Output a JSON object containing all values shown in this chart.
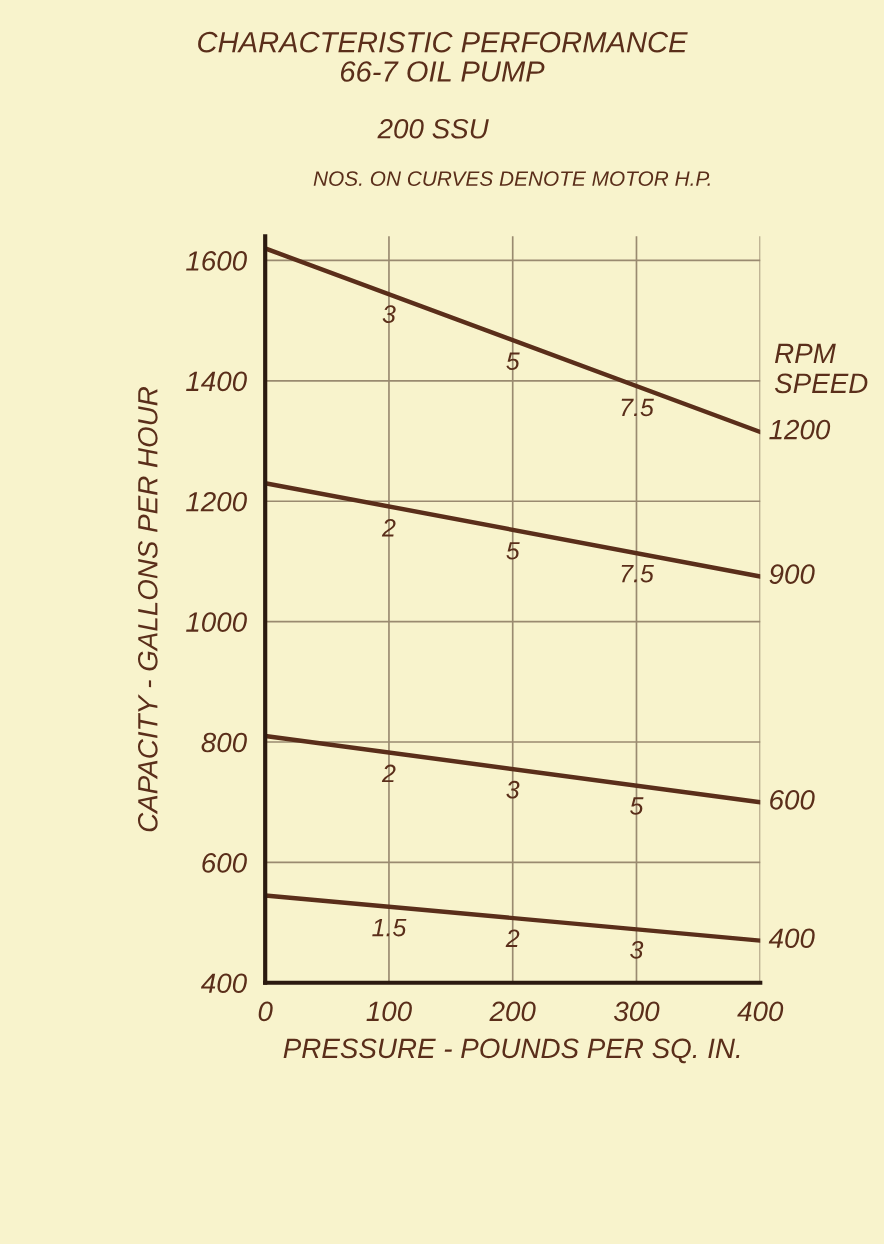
{
  "chart_data": {
    "type": "line",
    "title": "CHARACTERISTIC PERFORMANCE\n66-7 OIL PUMP",
    "subtitle": "200 SSU",
    "xlabel": "PRESSURE - POUNDS PER SQ. IN.",
    "ylabel": "CAPACITY - GALLONS PER HOUR",
    "legend_title": "RPM\nSPEED",
    "x": [
      0,
      400
    ],
    "series": [
      {
        "name": "1200",
        "color": "#5a2e1a",
        "values": [
          1620,
          1315
        ]
      },
      {
        "name": "900",
        "color": "#5a2e1a",
        "values": [
          1230,
          1075
        ]
      },
      {
        "name": "600",
        "color": "#5a2e1a",
        "values": [
          810,
          700
        ]
      },
      {
        "name": "400",
        "color": "#5a2e1a",
        "values": [
          545,
          470
        ]
      }
    ],
    "annotations": [
      "NOS. ON CURVES DENOTE MOTOR H.P.",
      {
        "text": "3",
        "x": 100,
        "y": 1545
      },
      {
        "text": "5",
        "x": 200,
        "y": 1467
      },
      {
        "text": "7.5",
        "x": 300,
        "y": 1390
      },
      {
        "text": "2",
        "x": 100,
        "y": 1190
      },
      {
        "text": "5",
        "x": 200,
        "y": 1152
      },
      {
        "text": "7.5",
        "x": 300,
        "y": 1114
      },
      {
        "text": "2",
        "x": 100,
        "y": 782
      },
      {
        "text": "3",
        "x": 200,
        "y": 755
      },
      {
        "text": "5",
        "x": 300,
        "y": 728
      },
      {
        "text": "1.5",
        "x": 100,
        "y": 526
      },
      {
        "text": "2",
        "x": 200,
        "y": 508
      },
      {
        "text": "3",
        "x": 300,
        "y": 489
      }
    ],
    "xlim": [
      0,
      400
    ],
    "ylim": [
      400,
      1640
    ],
    "xticks": [
      0,
      100,
      200,
      300,
      400
    ],
    "yticks": [
      400,
      600,
      800,
      1000,
      1200,
      1400,
      1600
    ],
    "grid": true,
    "legend": false
  }
}
